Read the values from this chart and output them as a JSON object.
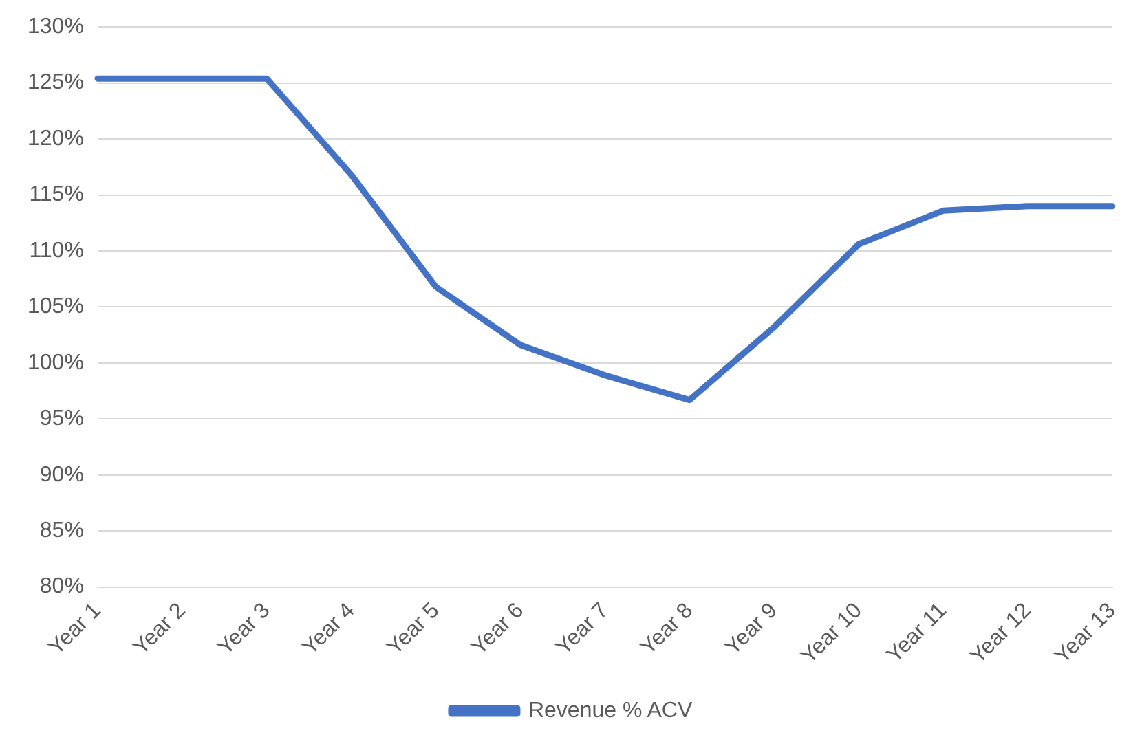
{
  "chart_data": {
    "type": "line",
    "categories": [
      "Year 1",
      "Year 2",
      "Year 3",
      "Year 4",
      "Year 5",
      "Year 6",
      "Year 7",
      "Year 8",
      "Year 9",
      "Year 10",
      "Year 11",
      "Year 12",
      "Year 13"
    ],
    "series": [
      {
        "name": "Revenue % ACV",
        "color": "#4472c4",
        "values": [
          125.4,
          125.4,
          125.4,
          116.8,
          106.8,
          101.6,
          98.9,
          96.7,
          103.2,
          110.6,
          113.6,
          114.0,
          114.0
        ]
      }
    ],
    "ylim": [
      80,
      130
    ],
    "yticks": [
      {
        "value": 80,
        "label": "80%"
      },
      {
        "value": 85,
        "label": "85%"
      },
      {
        "value": 90,
        "label": "90%"
      },
      {
        "value": 95,
        "label": "95%"
      },
      {
        "value": 100,
        "label": "100%"
      },
      {
        "value": 105,
        "label": "105%"
      },
      {
        "value": 110,
        "label": "110%"
      },
      {
        "value": 115,
        "label": "115%"
      },
      {
        "value": 120,
        "label": "120%"
      },
      {
        "value": 125,
        "label": "125%"
      },
      {
        "value": 130,
        "label": "130%"
      }
    ],
    "grid": "y",
    "legend": "bottom",
    "marker": "none",
    "line_style": "solid"
  }
}
